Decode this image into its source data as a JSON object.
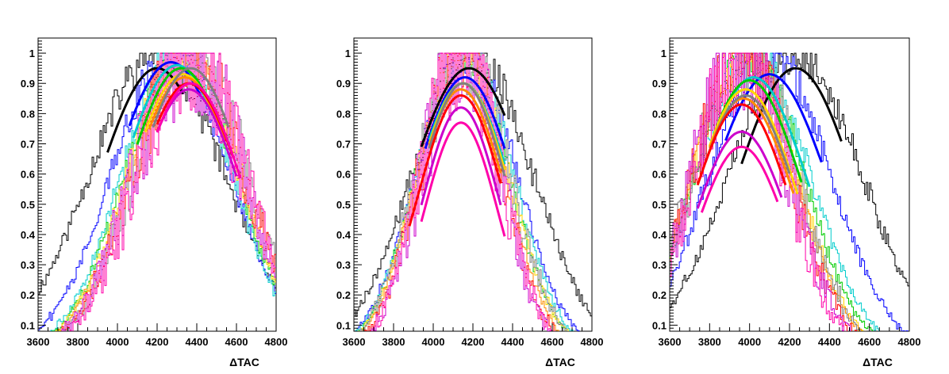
{
  "chart_data": [
    {
      "type": "line",
      "panel": "left",
      "xlabel": "ΔTAC",
      "ylabel": "",
      "xlim": [
        3600,
        4800
      ],
      "ylim": [
        0.08,
        1.05
      ],
      "xticks": [
        "3600",
        "3800",
        "4000",
        "4200",
        "4400",
        "4600",
        "4800"
      ],
      "yticks": [
        "0.1",
        "0.2",
        "0.3",
        "0.4",
        "0.5",
        "0.6",
        "0.7",
        "0.8",
        "0.9",
        "1"
      ],
      "grid": false,
      "legend": "none",
      "series": [
        {
          "color": "#000000",
          "mean": 4200,
          "sigma": 340,
          "fit_mean": 4200,
          "fit_peak": 0.95,
          "fit_sigma": 300,
          "fit_range": [
            3950,
            4330
          ]
        },
        {
          "color": "#0000ff",
          "mean": 4270,
          "sigma": 300,
          "fit_mean": 4270,
          "fit_peak": 0.97,
          "fit_sigma": 300,
          "fit_range": [
            4060,
            4420
          ]
        },
        {
          "color": "#00cccc",
          "mean": 4300,
          "sigma": 280,
          "fit_mean": 4300,
          "fit_peak": 0.96,
          "fit_sigma": 290,
          "fit_range": [
            4080,
            4470
          ]
        },
        {
          "color": "#00cc00",
          "mean": 4320,
          "sigma": 280,
          "fit_mean": 4320,
          "fit_peak": 0.95,
          "fit_sigma": 280,
          "fit_range": [
            4100,
            4500
          ]
        },
        {
          "color": "#ffd700",
          "mean": 4330,
          "sigma": 280,
          "fit_mean": 4330,
          "fit_peak": 0.93,
          "fit_sigma": 280,
          "fit_range": [
            4140,
            4520
          ]
        },
        {
          "color": "#ff8c00",
          "mean": 4340,
          "sigma": 280,
          "fit_mean": 4340,
          "fit_peak": 0.92,
          "fit_sigma": 280,
          "fit_range": [
            4160,
            4540
          ]
        },
        {
          "color": "#808080",
          "mean": 4370,
          "sigma": 280,
          "fit_mean": 4370,
          "fit_peak": 0.95,
          "fit_sigma": 280,
          "fit_range": [
            4180,
            4560
          ]
        },
        {
          "color": "#ff0000",
          "mean": 4360,
          "sigma": 280,
          "fit_mean": 4360,
          "fit_peak": 0.9,
          "fit_sigma": 280,
          "fit_range": [
            4200,
            4580
          ]
        },
        {
          "color": "#cc00cc",
          "mean": 4360,
          "sigma": 280,
          "fit_mean": 4360,
          "fit_peak": 0.88,
          "fit_sigma": 270,
          "fit_range": [
            4200,
            4600
          ]
        },
        {
          "color": "#ff00aa",
          "mean": 4370,
          "sigma": 270,
          "fit_mean": 4370,
          "fit_peak": 0.9,
          "fit_sigma": 270,
          "fit_range": [
            4200,
            4620
          ]
        }
      ]
    },
    {
      "type": "line",
      "panel": "middle",
      "xlabel": "ΔTAC",
      "ylabel": "",
      "xlim": [
        3600,
        4800
      ],
      "ylim": [
        0.08,
        1.05
      ],
      "xticks": [
        "3600",
        "3800",
        "4000",
        "4200",
        "4400",
        "4600",
        "4800"
      ],
      "yticks": [
        "0.1",
        "0.2",
        "0.3",
        "0.4",
        "0.5",
        "0.6",
        "0.7",
        "0.8",
        "0.9",
        "1"
      ],
      "grid": false,
      "legend": "none",
      "series": [
        {
          "color": "#000000",
          "mean": 4200,
          "sigma": 300,
          "fit_mean": 4180,
          "fit_peak": 0.95,
          "fit_sigma": 300,
          "fit_range": [
            3940,
            4360
          ]
        },
        {
          "color": "#0000ff",
          "mean": 4170,
          "sigma": 250,
          "fit_mean": 4160,
          "fit_peak": 0.92,
          "fit_sigma": 260,
          "fit_range": [
            3960,
            4360
          ]
        },
        {
          "color": "#00cccc",
          "mean": 4160,
          "sigma": 240,
          "fit_mean": 4150,
          "fit_peak": 0.9,
          "fit_sigma": 250,
          "fit_range": [
            3980,
            4360
          ]
        },
        {
          "color": "#00cc00",
          "mean": 4150,
          "sigma": 230,
          "fit_mean": 4150,
          "fit_peak": 0.9,
          "fit_sigma": 240,
          "fit_range": [
            3980,
            4360
          ]
        },
        {
          "color": "#ffd700",
          "mean": 4150,
          "sigma": 230,
          "fit_mean": 4150,
          "fit_peak": 0.9,
          "fit_sigma": 240,
          "fit_range": [
            3980,
            4360
          ]
        },
        {
          "color": "#ff8c00",
          "mean": 4140,
          "sigma": 220,
          "fit_mean": 4140,
          "fit_peak": 0.88,
          "fit_sigma": 230,
          "fit_range": [
            3980,
            4340
          ]
        },
        {
          "color": "#808080",
          "mean": 4150,
          "sigma": 230,
          "fit_mean": 4150,
          "fit_peak": 0.9,
          "fit_sigma": 230,
          "fit_range": [
            3980,
            4360
          ]
        },
        {
          "color": "#ff0000",
          "mean": 4140,
          "sigma": 210,
          "fit_mean": 4140,
          "fit_peak": 0.86,
          "fit_sigma": 220,
          "fit_range": [
            3880,
            4340
          ]
        },
        {
          "color": "#cc00cc",
          "mean": 4140,
          "sigma": 200,
          "fit_mean": 4140,
          "fit_peak": 0.82,
          "fit_sigma": 200,
          "fit_range": [
            3940,
            4340
          ]
        },
        {
          "color": "#ff00aa",
          "mean": 4140,
          "sigma": 200,
          "fit_mean": 4140,
          "fit_peak": 0.77,
          "fit_sigma": 190,
          "fit_range": [
            3940,
            4360
          ]
        }
      ]
    },
    {
      "type": "line",
      "panel": "right",
      "xlabel": "ΔTAC",
      "ylabel": "",
      "xlim": [
        3600,
        4800
      ],
      "ylim": [
        0.08,
        1.05
      ],
      "xticks": [
        "3600",
        "3800",
        "4000",
        "4200",
        "4400",
        "4600",
        "4800"
      ],
      "yticks": [
        "0.1",
        "0.2",
        "0.3",
        "0.4",
        "0.5",
        "0.6",
        "0.7",
        "0.8",
        "0.9",
        "1"
      ],
      "grid": false,
      "legend": "none",
      "series": [
        {
          "color": "#000000",
          "mean": 4230,
          "sigma": 330,
          "fit_mean": 4230,
          "fit_peak": 0.95,
          "fit_sigma": 300,
          "fit_range": [
            3960,
            4460
          ]
        },
        {
          "color": "#0000ff",
          "mean": 4100,
          "sigma": 300,
          "fit_mean": 4100,
          "fit_peak": 0.93,
          "fit_sigma": 300,
          "fit_range": [
            3880,
            4360
          ]
        },
        {
          "color": "#00cccc",
          "mean": 4020,
          "sigma": 280,
          "fit_mean": 4020,
          "fit_peak": 0.92,
          "fit_sigma": 280,
          "fit_range": [
            3840,
            4300
          ]
        },
        {
          "color": "#00cc00",
          "mean": 4000,
          "sigma": 270,
          "fit_mean": 4000,
          "fit_peak": 0.91,
          "fit_sigma": 270,
          "fit_range": [
            3820,
            4260
          ]
        },
        {
          "color": "#ffd700",
          "mean": 3980,
          "sigma": 260,
          "fit_mean": 3980,
          "fit_peak": 0.88,
          "fit_sigma": 260,
          "fit_range": [
            3800,
            4240
          ]
        },
        {
          "color": "#ff8c00",
          "mean": 3970,
          "sigma": 260,
          "fit_mean": 3970,
          "fit_peak": 0.85,
          "fit_sigma": 260,
          "fit_range": [
            3800,
            4220
          ]
        },
        {
          "color": "#808080",
          "mean": 3980,
          "sigma": 260,
          "fit_mean": 3980,
          "fit_peak": 0.86,
          "fit_sigma": 260,
          "fit_range": [
            3780,
            4200
          ]
        },
        {
          "color": "#ff0000",
          "mean": 3960,
          "sigma": 250,
          "fit_mean": 3960,
          "fit_peak": 0.83,
          "fit_sigma": 250,
          "fit_range": [
            3740,
            4180
          ]
        },
        {
          "color": "#cc00cc",
          "mean": 3960,
          "sigma": 240,
          "fit_mean": 3960,
          "fit_peak": 0.74,
          "fit_sigma": 240,
          "fit_range": [
            3740,
            4160
          ]
        },
        {
          "color": "#ff00aa",
          "mean": 3960,
          "sigma": 230,
          "fit_mean": 3960,
          "fit_peak": 0.69,
          "fit_sigma": 230,
          "fit_range": [
            3760,
            4140
          ]
        }
      ]
    }
  ]
}
